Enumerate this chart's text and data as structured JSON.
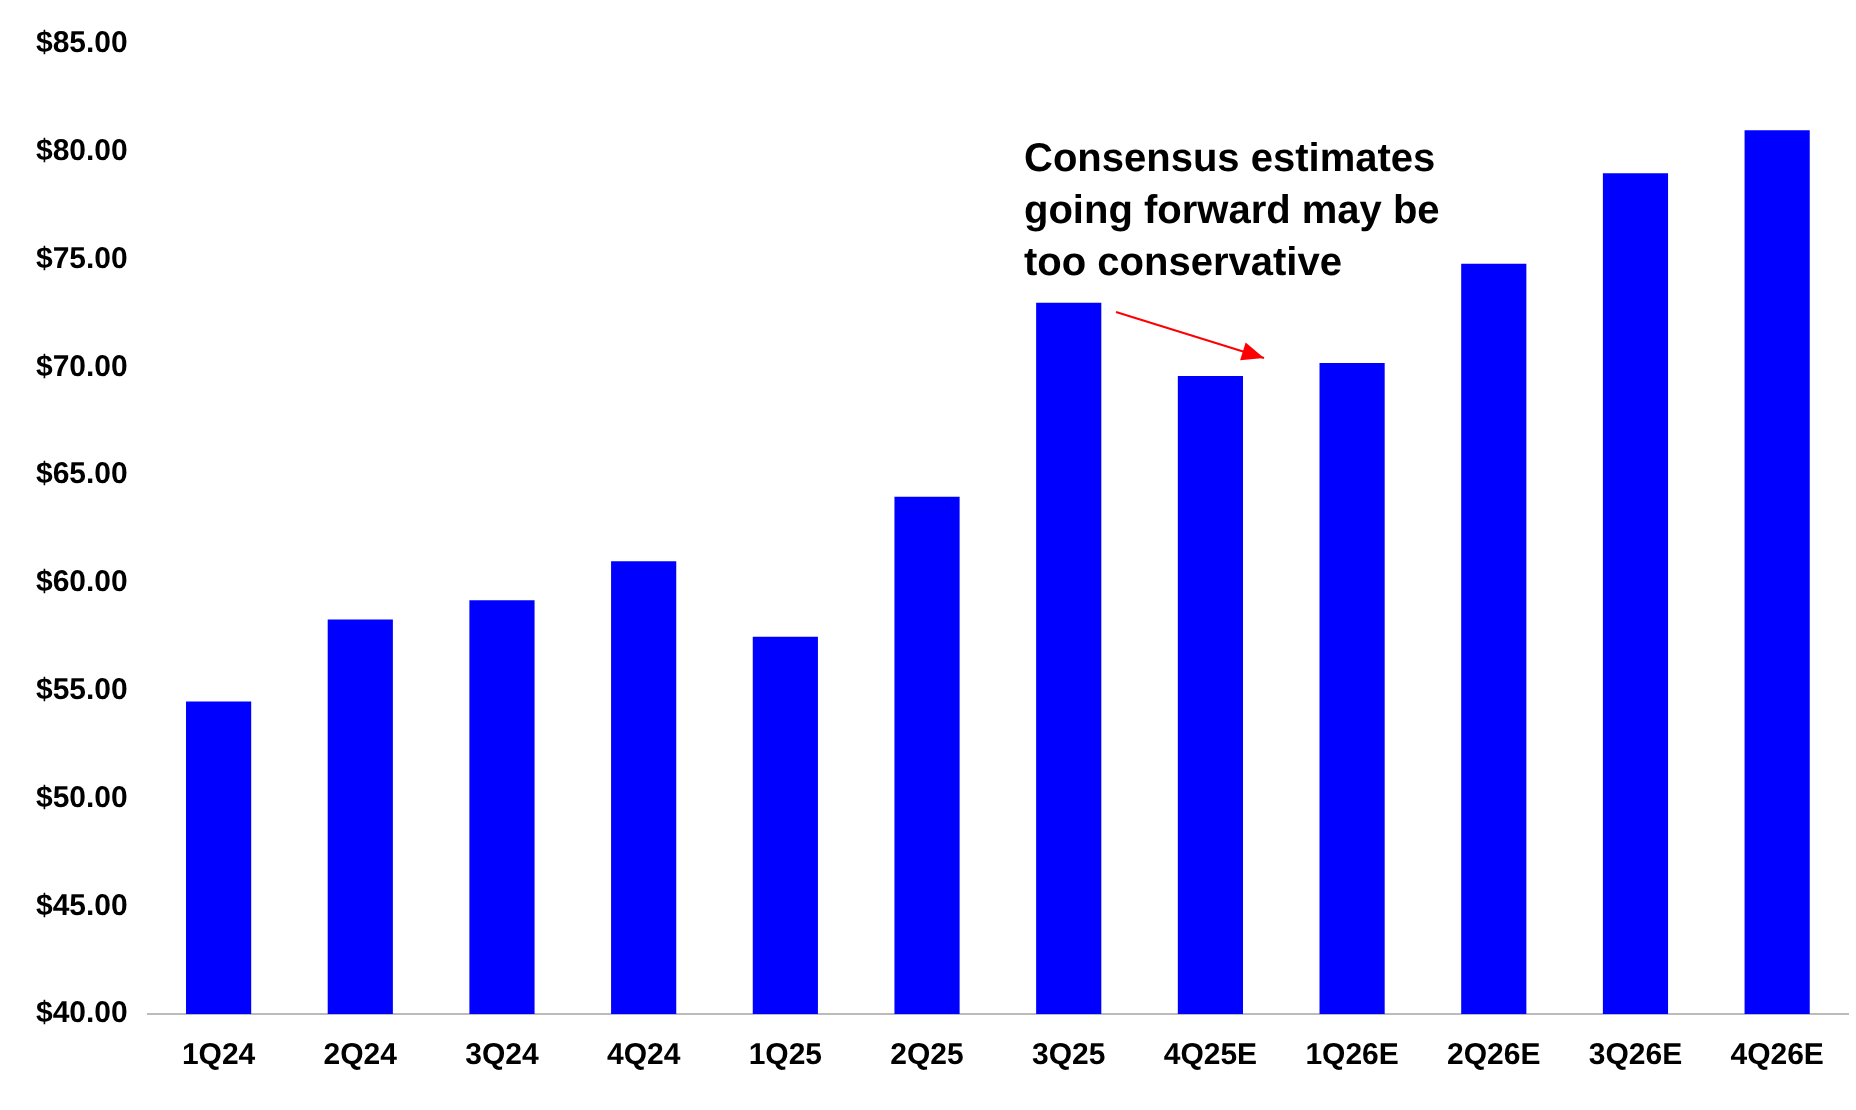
{
  "chart_data": {
    "type": "bar",
    "categories": [
      "1Q24",
      "2Q24",
      "3Q24",
      "4Q24",
      "1Q25",
      "2Q25",
      "3Q25",
      "4Q25E",
      "1Q26E",
      "2Q26E",
      "3Q26E",
      "4Q26E"
    ],
    "values": [
      54.5,
      58.3,
      59.2,
      61.0,
      57.5,
      64.0,
      73.0,
      69.6,
      70.2,
      74.8,
      79.0,
      81.0
    ],
    "color": "#0000ff",
    "ylim": [
      40,
      85
    ],
    "yticks": [
      {
        "value": 40,
        "label": "$40.00"
      },
      {
        "value": 45,
        "label": "$45.00"
      },
      {
        "value": 50,
        "label": "$50.00"
      },
      {
        "value": 55,
        "label": "$55.00"
      },
      {
        "value": 60,
        "label": "$60.00"
      },
      {
        "value": 65,
        "label": "$65.00"
      },
      {
        "value": 70,
        "label": "$70.00"
      },
      {
        "value": 75,
        "label": "$75.00"
      },
      {
        "value": 80,
        "label": "$80.00"
      },
      {
        "value": 85,
        "label": "$85.00"
      }
    ],
    "annotations": [
      "Consensus estimates\ngoing forward may be\ntoo conservative"
    ]
  }
}
